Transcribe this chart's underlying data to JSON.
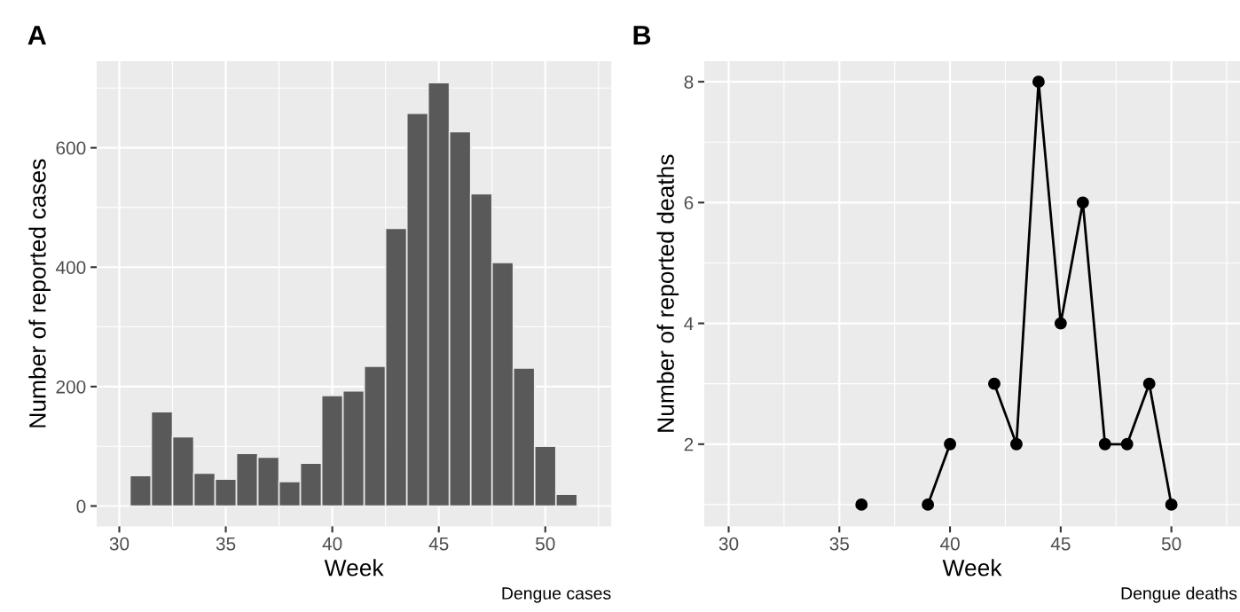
{
  "chart_data": [
    {
      "type": "histogram",
      "title": "A",
      "xlabel": "Week",
      "ylabel": "Number of reported cases",
      "bins": [
        30.5,
        31.5,
        32.5,
        33.5,
        34.5,
        35.5,
        36.5,
        37.5,
        38.5,
        39.5,
        40.5,
        41.5,
        42.5,
        43.5,
        44.5,
        45.5,
        46.5,
        47.5,
        48.5,
        49.5,
        50.5,
        51.5
      ],
      "values": [
        51,
        158,
        116,
        55,
        45,
        88,
        82,
        41,
        72,
        185,
        193,
        234,
        465,
        658,
        709,
        627,
        523,
        408,
        231,
        100,
        20
      ],
      "color": "#595959",
      "xlim": [
        28.94,
        53.1
      ],
      "ylim": [
        -34,
        745
      ],
      "xticks": [
        30,
        35,
        40,
        45,
        50
      ],
      "yticks": [
        0,
        200,
        400,
        600
      ],
      "grid": true,
      "annotations": [
        "Dengue cases"
      ]
    },
    {
      "type": "line",
      "title": "B",
      "xlabel": "Week",
      "ylabel": "Number of reported deaths",
      "x": [
        36,
        37,
        38,
        39,
        40,
        41,
        42,
        43,
        44,
        45,
        46,
        47,
        48,
        49,
        50
      ],
      "values": [
        1,
        null,
        null,
        1,
        2,
        null,
        3,
        2,
        8,
        4,
        6,
        2,
        2,
        3,
        1
      ],
      "color": "#000000",
      "marker": "circle",
      "line_style": "solid",
      "xlim": [
        28.9,
        53.1
      ],
      "ylim": [
        0.64,
        8.34
      ],
      "xticks": [
        30,
        35,
        40,
        45,
        50
      ],
      "yticks": [
        2,
        4,
        6,
        8
      ],
      "grid": true,
      "annotations": [
        "Dengue deaths"
      ]
    }
  ]
}
